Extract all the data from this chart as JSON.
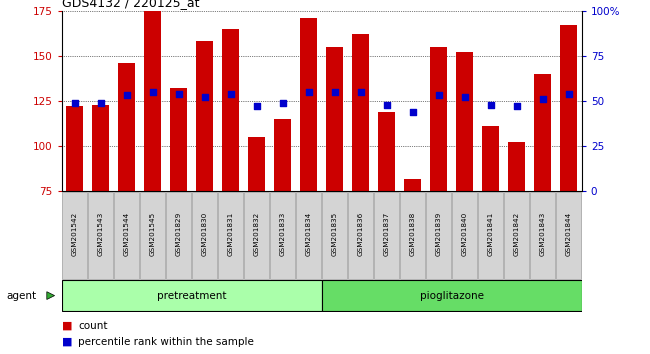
{
  "title": "GDS4132 / 220125_at",
  "samples": [
    "GSM201542",
    "GSM201543",
    "GSM201544",
    "GSM201545",
    "GSM201829",
    "GSM201830",
    "GSM201831",
    "GSM201832",
    "GSM201833",
    "GSM201834",
    "GSM201835",
    "GSM201836",
    "GSM201837",
    "GSM201838",
    "GSM201839",
    "GSM201840",
    "GSM201841",
    "GSM201842",
    "GSM201843",
    "GSM201844"
  ],
  "counts": [
    122,
    123,
    146,
    176,
    132,
    158,
    165,
    105,
    115,
    171,
    155,
    162,
    119,
    82,
    155,
    152,
    111,
    102,
    140,
    167
  ],
  "percentiles": [
    49,
    49,
    53,
    55,
    54,
    52,
    54,
    47,
    49,
    55,
    55,
    55,
    48,
    44,
    53,
    52,
    48,
    47,
    51,
    54
  ],
  "bar_color": "#cc0000",
  "dot_color": "#0000cc",
  "ylim_left": [
    75,
    175
  ],
  "ylim_right": [
    0,
    100
  ],
  "yticks_left": [
    75,
    100,
    125,
    150,
    175
  ],
  "yticks_right": [
    0,
    25,
    50,
    75,
    100
  ],
  "ytick_labels_right": [
    "0",
    "25",
    "50",
    "75",
    "100%"
  ],
  "group_labels": [
    "pretreatment",
    "pioglitazone"
  ],
  "group_split": 10,
  "legend_count": "count",
  "legend_percentile": "percentile rank within the sample",
  "bar_bottom": 75
}
